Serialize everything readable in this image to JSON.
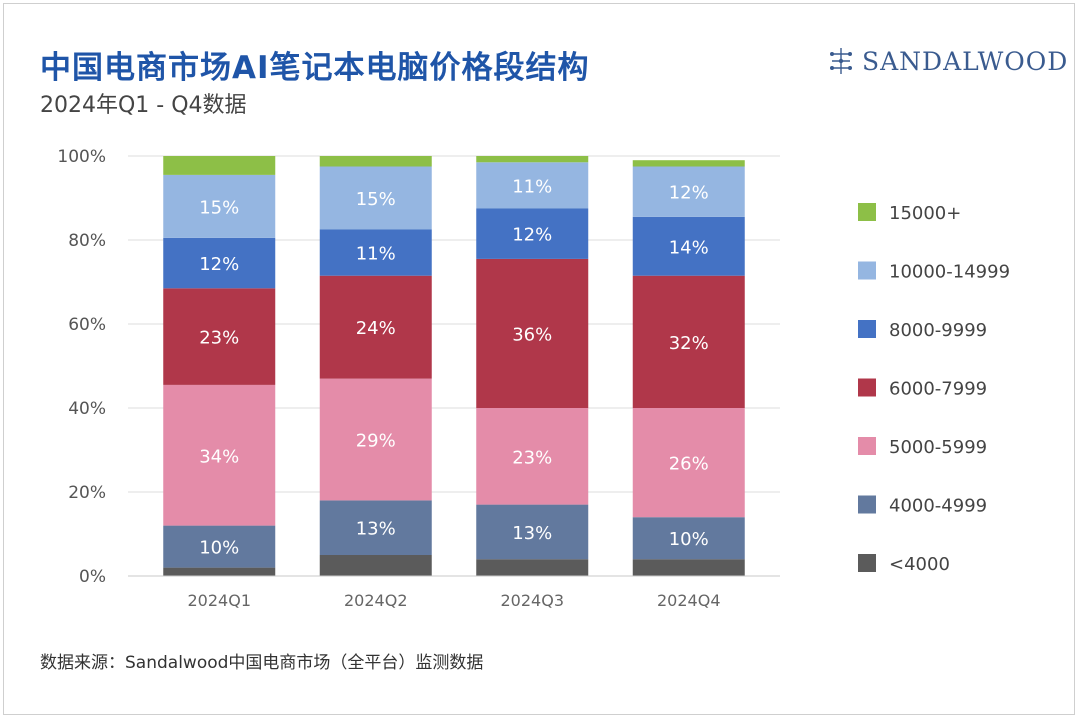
{
  "header": {
    "title": "中国电商市场AI笔记本电脑价格段结构",
    "subtitle": "2024年Q1 - Q4数据"
  },
  "logo": {
    "text": "SANDALWOOD",
    "icon": "sandalwood-logo-icon"
  },
  "footer": {
    "source": "数据来源：Sandalwood中国电商市场（全平台）监测数据"
  },
  "chart_data": {
    "type": "bar",
    "stacked": true,
    "categories": [
      "2024Q1",
      "2024Q2",
      "2024Q3",
      "2024Q4"
    ],
    "ylim": [
      0,
      100
    ],
    "yticks": [
      "0%",
      "20%",
      "40%",
      "60%",
      "80%",
      "100%"
    ],
    "grid": true,
    "legend_position": "right",
    "series": [
      {
        "name": "<4000",
        "color": "#5b5b5b",
        "values": [
          2,
          5,
          4,
          4
        ],
        "labels": [
          "",
          "",
          "",
          ""
        ]
      },
      {
        "name": "4000-4999",
        "color": "#62799e",
        "values": [
          10,
          13,
          13,
          10
        ],
        "labels": [
          "10%",
          "13%",
          "13%",
          "10%"
        ]
      },
      {
        "name": "5000-5999",
        "color": "#e48ca9",
        "values": [
          33.5,
          29,
          23,
          26
        ],
        "labels": [
          "34%",
          "29%",
          "23%",
          "26%"
        ]
      },
      {
        "name": "6000-7999",
        "color": "#b0374a",
        "values": [
          23,
          24.5,
          35.5,
          31.5
        ],
        "labels": [
          "23%",
          "24%",
          "36%",
          "32%"
        ]
      },
      {
        "name": "8000-9999",
        "color": "#4472c4",
        "values": [
          12,
          11,
          12,
          14
        ],
        "labels": [
          "12%",
          "11%",
          "12%",
          "14%"
        ]
      },
      {
        "name": "10000-14999",
        "color": "#95b6e1",
        "values": [
          15,
          15,
          11,
          12
        ],
        "labels": [
          "15%",
          "15%",
          "11%",
          "12%"
        ]
      },
      {
        "name": "15000+",
        "color": "#8dbf47",
        "values": [
          4.5,
          2.5,
          1.5,
          1.5
        ],
        "labels": [
          "",
          "",
          "",
          ""
        ]
      }
    ]
  }
}
